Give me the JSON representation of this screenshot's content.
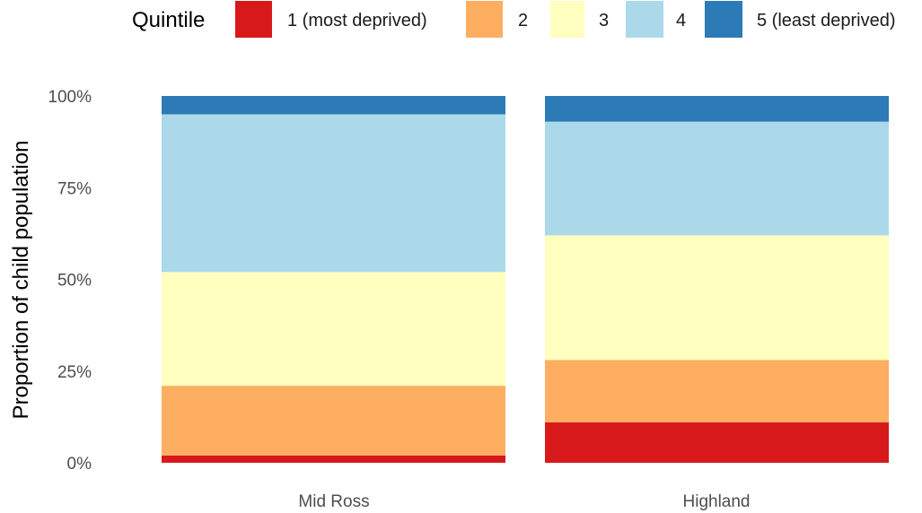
{
  "chart_data": {
    "type": "bar",
    "stacked": true,
    "percent_stacked": true,
    "title": "",
    "xlabel": "",
    "ylabel": "Proportion of child population",
    "ylim": [
      0,
      1
    ],
    "yticks": [
      0,
      0.25,
      0.5,
      0.75,
      1
    ],
    "ytick_labels": [
      "0%",
      "25%",
      "50%",
      "75%",
      "100%"
    ],
    "categories": [
      "Mid Ross",
      "Highland"
    ],
    "legend": {
      "title": "Quintile",
      "position": "top"
    },
    "grid": false,
    "series": [
      {
        "name": "1 (most deprived)",
        "color": "#d7191c",
        "values": [
          0.02,
          0.11
        ]
      },
      {
        "name": "2",
        "color": "#fdae61",
        "values": [
          0.19,
          0.17
        ]
      },
      {
        "name": "3",
        "color": "#ffffbf",
        "values": [
          0.31,
          0.34
        ]
      },
      {
        "name": "4",
        "color": "#abd9e9",
        "values": [
          0.43,
          0.31
        ]
      },
      {
        "name": "5 (least deprived)",
        "color": "#2c7bb6",
        "values": [
          0.05,
          0.07
        ]
      }
    ]
  }
}
